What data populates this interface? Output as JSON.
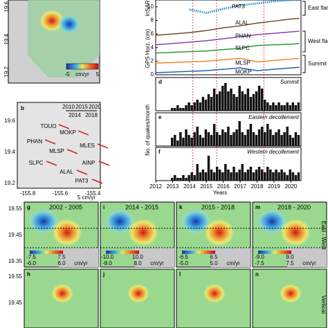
{
  "map_a": {
    "yticks": [
      "19.6",
      "19.4",
      "19.2"
    ],
    "colorbar": {
      "min": "-5",
      "unit": "cm/yr",
      "max": "5"
    }
  },
  "map_b": {
    "label": "b",
    "time_top": [
      "2010",
      "2015",
      "2020"
    ],
    "time_bottom": [
      "2014",
      "2018"
    ],
    "stations": [
      "TOUO",
      "MOKP",
      "PHAN",
      "MLES",
      "MLSP",
      "SLPC",
      "AINP",
      "ALAL",
      "PAT3"
    ],
    "yticks": [
      "19.6",
      "19.4",
      "19.2"
    ],
    "xticks": [
      "-155.8",
      "-155.6",
      "-155.4"
    ],
    "scale": "5 cm/yr"
  },
  "gps": {
    "insar_label": "InSAR",
    "ylabel": "GPS Horz. (cm)",
    "ylim": [
      0,
      11
    ],
    "yticks": [
      0,
      2,
      4,
      6,
      8,
      10
    ],
    "xlim": [
      2012,
      2020.6
    ],
    "x": [
      2012,
      2013,
      2014,
      2015,
      2016,
      2017,
      2018,
      2019,
      2020,
      2020.5
    ],
    "series": [
      {
        "name": "PAT3",
        "color": "#1f8fd0",
        "values": [
          null,
          null,
          9.6,
          9.1,
          9.7,
          10.2,
          10.5,
          10.8,
          11,
          11
        ]
      },
      {
        "name": "ALAL",
        "color": "#6b4a2e",
        "values": [
          5.8,
          6.0,
          6.2,
          6.5,
          6.9,
          7.2,
          7.6,
          7.9,
          8.2,
          8.3
        ]
      },
      {
        "name": "PHAN",
        "color": "#8a3fb0",
        "values": [
          4.4,
          4.6,
          4.8,
          5.0,
          5.3,
          5.6,
          5.9,
          6.1,
          6.3,
          6.4
        ]
      },
      {
        "name": "SLPC",
        "color": "#2a9a3a",
        "values": [
          3.2,
          3.3,
          3.4,
          3.5,
          3.7,
          3.9,
          4.3,
          4.4,
          4.5,
          4.6
        ]
      },
      {
        "name": "MLSP",
        "color": "#f0862a",
        "values": [
          1.7,
          1.8,
          1.9,
          2.0,
          2.2,
          2.4,
          1.9,
          2.1,
          2.3,
          2.4
        ]
      },
      {
        "name": "MOKP",
        "color": "#2060c0",
        "values": [
          0.3,
          0.4,
          0.5,
          0.6,
          0.8,
          1.0,
          0.6,
          0.8,
          1.0,
          1.1
        ]
      }
    ],
    "groups": [
      "East flank",
      "West flank",
      "Summit"
    ],
    "event_lines": [
      2014.2,
      2015.6,
      2018.4
    ]
  },
  "quakes": {
    "ylabel": "No. of quakes/month",
    "xlabel": "Years",
    "xticks": [
      2012,
      2013,
      2014,
      2015,
      2016,
      2017,
      2018,
      2019,
      2020
    ],
    "panels": [
      {
        "label": "d",
        "name": "Summit",
        "values": [
          1,
          1,
          2,
          1,
          1,
          2,
          3,
          2,
          3,
          4,
          3,
          5,
          4,
          6,
          5,
          8,
          6,
          7,
          9,
          10,
          7,
          8,
          6,
          5,
          9,
          7,
          6,
          8,
          5,
          6,
          7,
          9,
          8,
          4,
          3,
          2,
          3,
          2,
          3,
          2,
          2,
          3,
          2,
          3,
          2,
          3
        ]
      },
      {
        "label": "e",
        "name": "Eastern decollement",
        "values": [
          3,
          4,
          2,
          5,
          3,
          6,
          4,
          3,
          5,
          7,
          4,
          3,
          6,
          5,
          4,
          8,
          5,
          4,
          6,
          5,
          7,
          4,
          5,
          6,
          9,
          5,
          4,
          6,
          8,
          5,
          4,
          6,
          7,
          5,
          8,
          6,
          4,
          5,
          6,
          4,
          5,
          7,
          4,
          3,
          5,
          4
        ]
      },
      {
        "label": "f",
        "name": "Western decollement",
        "values": [
          1,
          2,
          1,
          1,
          2,
          1,
          2,
          3,
          2,
          6,
          3,
          4,
          3,
          9,
          4,
          3,
          5,
          4,
          3,
          6,
          4,
          3,
          5,
          3,
          4,
          6,
          3,
          4,
          5,
          3,
          4,
          5,
          4,
          3,
          5,
          4,
          3,
          4,
          3,
          4,
          3,
          2,
          4,
          3,
          2,
          3
        ]
      }
    ]
  },
  "insar": {
    "unit": "cm/yr",
    "yticks": [
      "19.55",
      "19.45",
      "19.35"
    ],
    "yticks_row2": [
      "19.55",
      "19.45"
    ],
    "row_labels": [
      "East - West",
      "Vertical"
    ],
    "row1": [
      {
        "label": "g",
        "period": "2002 - 2005",
        "cbar": [
          "-7.5",
          "7.5"
        ]
      },
      {
        "label": "i",
        "period": "2014 - 2015",
        "cbar": [
          "-10.0",
          "10.0"
        ]
      },
      {
        "label": "k",
        "period": "2015 - 2018",
        "cbar": [
          "-6.5",
          "6.5"
        ]
      },
      {
        "label": "m",
        "period": "2018 - 2020",
        "cbar": [
          "-9.0",
          "9.0"
        ]
      }
    ],
    "row2": [
      {
        "label": "h",
        "cbar": [
          "-6.0",
          "6.0"
        ]
      },
      {
        "label": "j",
        "cbar": [
          "-8.0",
          "8.0"
        ]
      },
      {
        "label": "l",
        "cbar": [
          "-5.0",
          "5.0"
        ]
      },
      {
        "label": "n",
        "cbar": [
          "-7.5",
          "7.5"
        ]
      }
    ]
  }
}
